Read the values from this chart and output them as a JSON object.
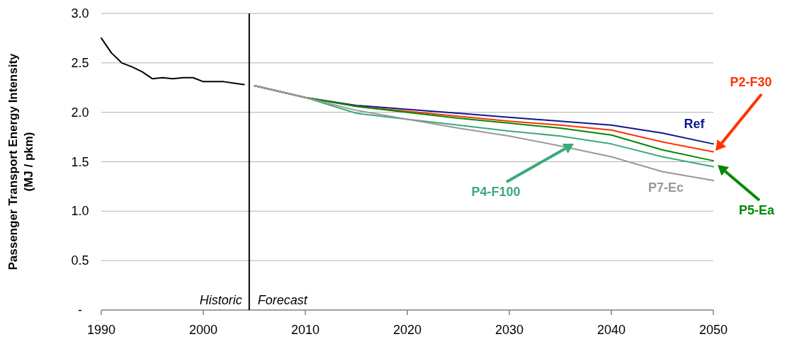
{
  "chart_data": {
    "type": "line",
    "ylabel": "Passenger Transport Energy Intensity\n(MJ / pkm)",
    "xlim": [
      1990,
      2050
    ],
    "xticks": [
      1990,
      2000,
      2010,
      2020,
      2030,
      2040,
      2050
    ],
    "ylim": [
      0,
      3
    ],
    "yticks": [
      {
        "value": 0,
        "label": "-"
      },
      0.5,
      {
        "value": 1,
        "label": "1.0"
      },
      1.5,
      {
        "value": 2,
        "label": "2.0"
      },
      2.5,
      {
        "value": 3,
        "label": "3.0"
      }
    ],
    "grid": "y",
    "marker": "none",
    "line_style": "solid",
    "ref_lines": [
      {
        "axis": "x",
        "value": 2004.5,
        "color": "#000000"
      }
    ],
    "annotations": [
      "Historic",
      "Forecast"
    ],
    "series": [
      {
        "color": "#000000",
        "x": [
          1990,
          1991,
          1992,
          1993,
          1994,
          1995,
          1996,
          1997,
          1998,
          1999,
          2000,
          2001,
          2002,
          2003,
          2004
        ],
        "values": [
          2.75,
          2.6,
          2.5,
          2.46,
          2.41,
          2.34,
          2.35,
          2.34,
          2.35,
          2.35,
          2.31,
          2.31,
          2.31,
          2.295,
          2.28
        ]
      },
      {
        "name": "Ref",
        "color": "#0d1a8c",
        "x": [
          2005,
          2010,
          2015,
          2020,
          2025,
          2030,
          2035,
          2040,
          2045,
          2050
        ],
        "values": [
          2.27,
          2.15,
          2.07,
          2.03,
          1.99,
          1.95,
          1.91,
          1.87,
          1.79,
          1.68
        ]
      },
      {
        "name": "P2-F30",
        "color": "#ff3300",
        "x": [
          2005,
          2010,
          2015,
          2020,
          2025,
          2030,
          2035,
          2040,
          2045,
          2050
        ],
        "values": [
          2.27,
          2.15,
          2.06,
          2.01,
          1.96,
          1.91,
          1.87,
          1.82,
          1.7,
          1.6
        ]
      },
      {
        "name": "P5-Ea",
        "color": "#008a00",
        "x": [
          2005,
          2010,
          2015,
          2020,
          2025,
          2030,
          2035,
          2040,
          2045,
          2050
        ],
        "values": [
          2.27,
          2.15,
          2.06,
          2.0,
          1.94,
          1.89,
          1.84,
          1.77,
          1.62,
          1.51
        ]
      },
      {
        "name": "P4-F100",
        "color": "#3aaa7a",
        "x": [
          2005,
          2010,
          2015,
          2020,
          2025,
          2030,
          2035,
          2040,
          2045,
          2050
        ],
        "values": [
          2.27,
          2.15,
          1.99,
          1.93,
          1.87,
          1.81,
          1.76,
          1.68,
          1.55,
          1.45
        ]
      },
      {
        "name": "P7-Ec",
        "color": "#999999",
        "x": [
          2005,
          2010,
          2015,
          2020,
          2025,
          2030,
          2035,
          2040,
          2045,
          2050
        ],
        "values": [
          2.27,
          2.15,
          2.02,
          1.93,
          1.84,
          1.76,
          1.66,
          1.55,
          1.4,
          1.31
        ]
      }
    ]
  }
}
